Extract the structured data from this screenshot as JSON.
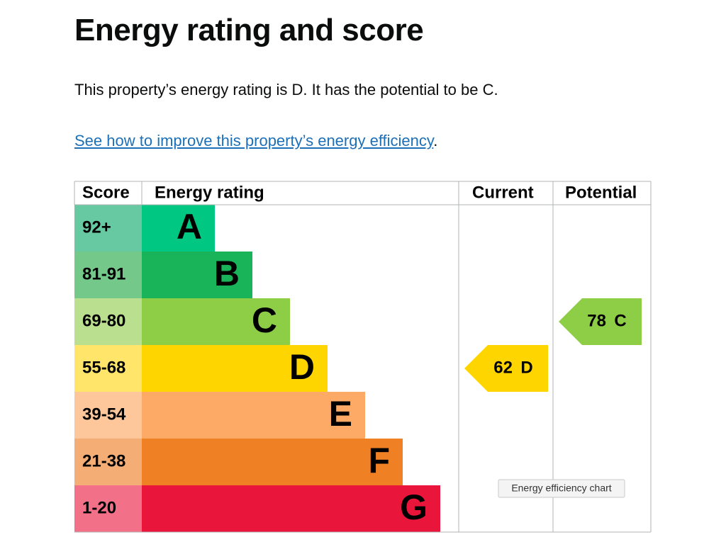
{
  "heading": "Energy rating and score",
  "summary": "This property’s energy rating is D. It has the potential to be C.",
  "link": {
    "text": "See how to improve this property’s energy efficiency",
    "after": "."
  },
  "chart": {
    "headers": [
      "Score",
      "Energy rating",
      "Current",
      "Potential"
    ],
    "bands": [
      {
        "score": "92+",
        "rating": "A",
        "color": "#00c781",
        "score_color": "#66c9a2"
      },
      {
        "score": "81-91",
        "rating": "B",
        "color": "#19b459",
        "score_color": "#74c98a"
      },
      {
        "score": "69-80",
        "rating": "C",
        "color": "#8dce46",
        "score_color": "#b9df8f"
      },
      {
        "score": "55-68",
        "rating": "D",
        "color": "#ffd500",
        "score_color": "#ffe66b"
      },
      {
        "score": "39-54",
        "rating": "E",
        "color": "#fcaa65",
        "score_color": "#fdc79b"
      },
      {
        "score": "21-38",
        "rating": "F",
        "color": "#ef8023",
        "score_color": "#f4ad75"
      },
      {
        "score": "1-20",
        "rating": "G",
        "color": "#e9153b",
        "score_color": "#f27189"
      }
    ],
    "current": {
      "score": 62,
      "rating": "D"
    },
    "potential": {
      "score": 78,
      "rating": "C"
    },
    "tooltip": "Energy efficiency chart"
  }
}
